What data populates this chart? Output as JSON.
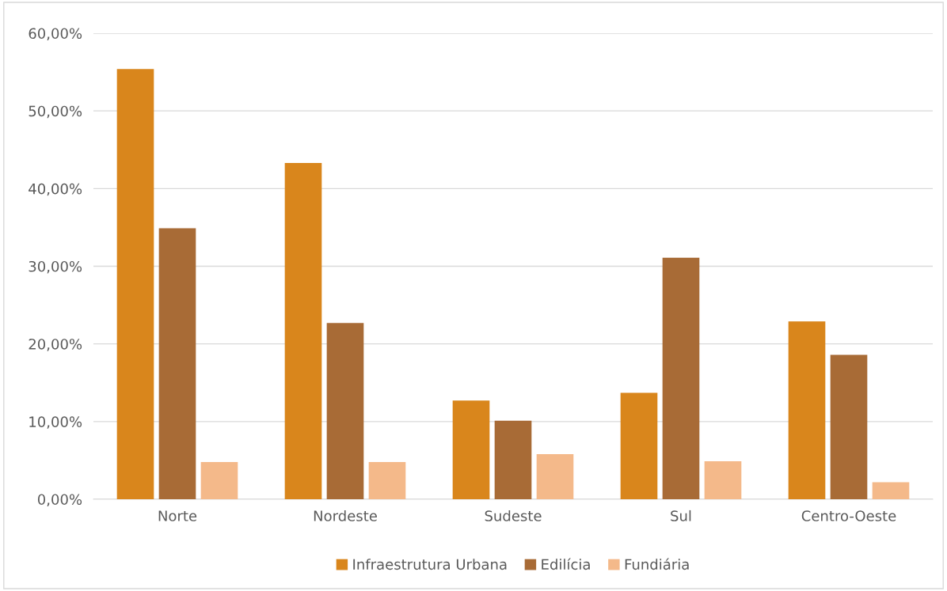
{
  "chart_data": {
    "type": "bar",
    "categories": [
      "Norte",
      "Nordeste",
      "Sudeste",
      "Sul",
      "Centro-Oeste"
    ],
    "series": [
      {
        "name": "Infraestrutura Urbana",
        "color": "#d9861c",
        "values": [
          55.4,
          43.3,
          12.7,
          13.7,
          22.9
        ]
      },
      {
        "name": "Edilícia",
        "color": "#a86b36",
        "values": [
          34.9,
          22.7,
          10.1,
          31.1,
          18.6
        ]
      },
      {
        "name": "Fundiária",
        "color": "#f4b98a",
        "values": [
          4.8,
          4.8,
          5.8,
          4.9,
          2.2
        ]
      }
    ],
    "ylim": [
      0,
      60
    ],
    "yticks": [
      {
        "value": 0,
        "label": "0,00%"
      },
      {
        "value": 10,
        "label": "10,00%"
      },
      {
        "value": 20,
        "label": "20,00%"
      },
      {
        "value": 30,
        "label": "30,00%"
      },
      {
        "value": 40,
        "label": "40,00%"
      },
      {
        "value": 50,
        "label": "50,00%"
      },
      {
        "value": 60,
        "label": "60,00%"
      }
    ],
    "grid": "y",
    "legend": "bottom"
  }
}
